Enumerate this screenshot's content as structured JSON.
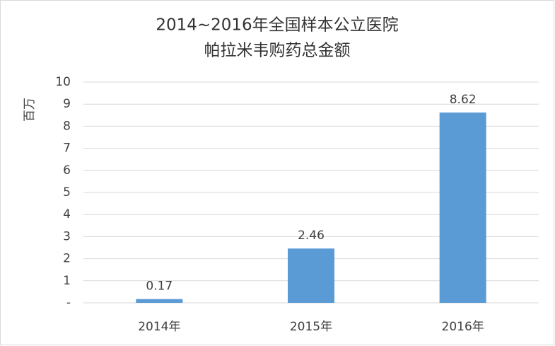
{
  "chart_data": {
    "type": "bar",
    "title": [
      "2014~2016年全国样本公立医院",
      "帕拉米韦购药总金额"
    ],
    "y_label": "百万",
    "categories": [
      "2014年",
      "2015年",
      "2016年"
    ],
    "values": [
      0.17,
      2.46,
      8.62
    ],
    "color": "#5b9bd5",
    "ylim": [
      0,
      10
    ],
    "yticks": [
      {
        "value": 0,
        "label": "-"
      },
      1,
      2,
      3,
      4,
      5,
      6,
      7,
      8,
      9,
      10
    ],
    "grid": true
  }
}
